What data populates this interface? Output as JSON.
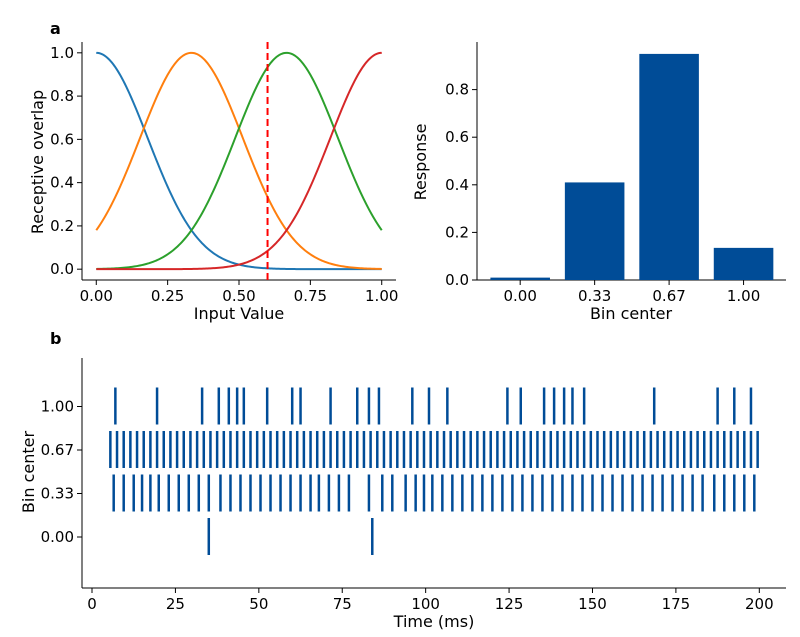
{
  "panel_labels": {
    "a": "a",
    "b": "b"
  },
  "chart_data": [
    {
      "id": "tuning-curves",
      "type": "line",
      "xlabel": "Input Value",
      "ylabel": "Receptive overlap",
      "xlim": [
        -0.05,
        1.05
      ],
      "ylim": [
        -0.05,
        1.05
      ],
      "xticks": [
        "0.00",
        "0.25",
        "0.50",
        "0.75",
        "1.00"
      ],
      "yticks": [
        "0.0",
        "0.2",
        "0.4",
        "0.6",
        "0.8",
        "1.0"
      ],
      "grid": false,
      "series": [
        {
          "center": 0.0,
          "color": "#1f77b4"
        },
        {
          "center": 0.3333,
          "color": "#ff7f0e"
        },
        {
          "center": 0.6667,
          "color": "#2ca02c"
        },
        {
          "center": 1.0,
          "color": "#d62728"
        }
      ],
      "gaussian_sigma": 0.18,
      "marker_line": {
        "x": 0.6,
        "color": "#ff0000",
        "style": "dashed"
      }
    },
    {
      "id": "bin-response",
      "type": "bar",
      "xlabel": "Bin center",
      "ylabel": "Response",
      "categories": [
        "0.00",
        "0.33",
        "0.67",
        "1.00"
      ],
      "values": [
        0.01,
        0.41,
        0.95,
        0.135
      ],
      "ylim": [
        0,
        1.0
      ],
      "yticks": [
        "0.0",
        "0.2",
        "0.4",
        "0.6",
        "0.8"
      ],
      "color": "#004c97",
      "grid": false
    },
    {
      "id": "spike-raster",
      "type": "scatter",
      "xlabel": "Time (ms)",
      "ylabel": "Bin center",
      "xlim": [
        -3,
        208
      ],
      "xticks": [
        "0",
        "25",
        "50",
        "75",
        "100",
        "125",
        "150",
        "175",
        "200"
      ],
      "yticks": [
        "0.00",
        "0.33",
        "0.67",
        "1.00"
      ],
      "color": "#004c97",
      "grid": false,
      "rows": [
        {
          "label": "0.00",
          "spikes": [
            35,
            84
          ]
        },
        {
          "label": "0.33",
          "spikes": [
            6.5,
            9.5,
            12.5,
            15,
            17.5,
            20,
            23,
            26,
            29,
            32,
            35,
            38.5,
            41.5,
            44.5,
            47.5,
            50.5,
            53.5,
            56.5,
            59.5,
            62.5,
            65.5,
            68,
            71,
            74,
            77,
            83,
            87,
            90,
            94,
            97,
            99.5,
            102,
            105,
            108,
            111,
            114,
            117,
            120,
            123,
            126,
            129,
            132,
            135,
            138,
            141,
            144,
            147,
            150,
            153,
            156,
            159,
            162,
            165,
            168,
            171,
            174,
            177,
            180,
            183,
            186.5,
            189.5,
            192.5,
            195.5,
            198.5
          ]
        },
        {
          "label": "0.67",
          "spikes": [
            5.5,
            7.5,
            9.5,
            11.5,
            13.5,
            15.5,
            17.5,
            19.5,
            21.5,
            23.5,
            25.5,
            27.5,
            29.5,
            31.5,
            33.5,
            35.5,
            37.5,
            39.5,
            41.5,
            43.5,
            45.5,
            47.5,
            49.5,
            51.5,
            53.5,
            55.5,
            57.5,
            59.5,
            61.5,
            63.5,
            65.5,
            67.5,
            69.5,
            71.5,
            73.5,
            75.5,
            77.5,
            79.5,
            81.5,
            83.5,
            85.5,
            87.5,
            89.5,
            91.5,
            93.5,
            95.5,
            97.5,
            99.5,
            101.5,
            103.5,
            105.5,
            107.5,
            109.5,
            111.5,
            113.5,
            115.5,
            117.5,
            119.5,
            121.5,
            123.5,
            125.5,
            127.5,
            129.5,
            131.5,
            133.5,
            135.5,
            137.5,
            139.5,
            141.5,
            143.5,
            145.5,
            147.5,
            149.5,
            151.5,
            153.5,
            155.5,
            157.5,
            159.5,
            161.5,
            163.5,
            165.5,
            167.5,
            169.5,
            171.5,
            173.5,
            175.5,
            177.5,
            179.5,
            181.5,
            183.5,
            185.5,
            187.5,
            189.5,
            191.5,
            193.5,
            195.5,
            197.5,
            199.5
          ]
        },
        {
          "label": "1.00",
          "spikes": [
            7,
            19.5,
            33,
            38,
            41,
            43.5,
            45.5,
            52.5,
            60,
            62.5,
            71.5,
            79.5,
            83,
            86,
            96,
            101,
            106.5,
            124.5,
            128.5,
            135.5,
            138.5,
            141.5,
            144,
            147.5,
            168.5,
            187.5,
            192.5,
            197.5
          ]
        }
      ]
    }
  ]
}
